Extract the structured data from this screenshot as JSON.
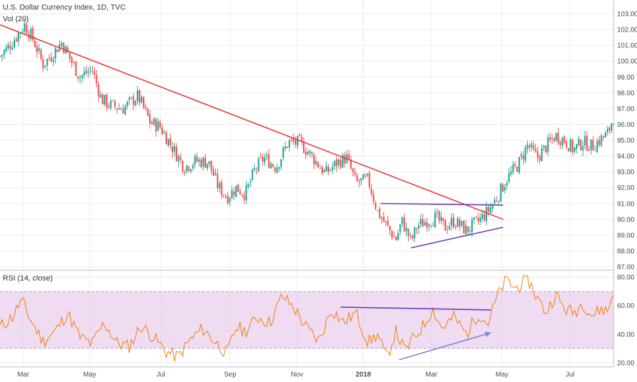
{
  "header": {
    "title": "U.S. Dollar Currency Index, 1D, TVC",
    "volume_label": "Vol (20)",
    "rsi_label": "RSI (14, close)"
  },
  "colors": {
    "up_candle": "#26a69a",
    "down_candle": "#ef5350",
    "trendline": "#e53935",
    "triangle_lines": "#673ab7",
    "rsi_line": "#f57c00",
    "rsi_band": "#e1bee7",
    "rsi_arrow": "#7986cb",
    "grid": "#ececec"
  },
  "chart_data": [
    {
      "type": "candlestick",
      "title": "U.S. Dollar Currency Index, 1D, TVC",
      "x_ticks": [
        "Mar",
        "May",
        "Jul",
        "Sep",
        "Nov",
        "2018",
        "Mar",
        "May",
        "Jul"
      ],
      "y_ticks": [
        "103.00",
        "102.00",
        "101.00",
        "100.00",
        "99.00",
        "98.00",
        "97.00",
        "96.00",
        "95.00",
        "94.00",
        "93.00",
        "92.00",
        "91.00",
        "90.00",
        "89.00",
        "88.00",
        "87.00"
      ],
      "ylim": [
        87,
        103
      ],
      "close_path": [
        [
          0,
          100.3
        ],
        [
          0.02,
          101.2
        ],
        [
          0.04,
          102.3
        ],
        [
          0.055,
          101.3
        ],
        [
          0.07,
          99.8
        ],
        [
          0.085,
          100.4
        ],
        [
          0.1,
          101.2
        ],
        [
          0.115,
          100.1
        ],
        [
          0.13,
          99.0
        ],
        [
          0.15,
          99.5
        ],
        [
          0.165,
          97.6
        ],
        [
          0.18,
          97.2
        ],
        [
          0.2,
          97.0
        ],
        [
          0.225,
          97.8
        ],
        [
          0.245,
          96.1
        ],
        [
          0.26,
          95.9
        ],
        [
          0.28,
          94.6
        ],
        [
          0.3,
          93.3
        ],
        [
          0.32,
          93.7
        ],
        [
          0.34,
          93.6
        ],
        [
          0.355,
          92.1
        ],
        [
          0.37,
          91.4
        ],
        [
          0.385,
          92.0
        ],
        [
          0.4,
          91.6
        ],
        [
          0.415,
          93.1
        ],
        [
          0.43,
          93.9
        ],
        [
          0.45,
          93.3
        ],
        [
          0.47,
          94.9
        ],
        [
          0.49,
          94.8
        ],
        [
          0.51,
          93.9
        ],
        [
          0.53,
          92.9
        ],
        [
          0.55,
          93.6
        ],
        [
          0.565,
          93.9
        ],
        [
          0.58,
          92.3
        ],
        [
          0.6,
          92.5
        ],
        [
          0.615,
          90.5
        ],
        [
          0.63,
          89.6
        ],
        [
          0.645,
          88.7
        ],
        [
          0.655,
          89.9
        ],
        [
          0.67,
          88.6
        ],
        [
          0.68,
          89.6
        ],
        [
          0.695,
          89.9
        ],
        [
          0.71,
          90.1
        ],
        [
          0.725,
          89.5
        ],
        [
          0.74,
          89.9
        ],
        [
          0.76,
          89.3
        ],
        [
          0.78,
          89.9
        ],
        [
          0.795,
          90.5
        ],
        [
          0.81,
          91.4
        ],
        [
          0.825,
          92.5
        ],
        [
          0.845,
          93.5
        ],
        [
          0.86,
          94.7
        ],
        [
          0.875,
          93.9
        ],
        [
          0.89,
          94.6
        ],
        [
          0.905,
          95.3
        ],
        [
          0.92,
          95.0
        ],
        [
          0.935,
          94.4
        ],
        [
          0.95,
          94.9
        ],
        [
          0.965,
          94.6
        ],
        [
          0.98,
          95.1
        ],
        [
          0.99,
          95.4
        ],
        [
          1.0,
          96.5
        ]
      ],
      "trendline": [
        [
          0.0,
          102.3
        ],
        [
          0.82,
          90.0
        ]
      ],
      "triangle_upper": [
        [
          0.62,
          91.0
        ],
        [
          0.82,
          90.9
        ]
      ],
      "triangle_lower": [
        [
          0.67,
          88.2
        ],
        [
          0.82,
          89.5
        ]
      ]
    },
    {
      "type": "line",
      "title": "RSI (14, close)",
      "y_ticks": [
        "80.00",
        "60.00",
        "40.00",
        "20.00"
      ],
      "ylim": [
        17,
        83
      ],
      "band": [
        30,
        70
      ],
      "rsi_path": [
        [
          0,
          45
        ],
        [
          0.02,
          52
        ],
        [
          0.035,
          64
        ],
        [
          0.05,
          50
        ],
        [
          0.07,
          35
        ],
        [
          0.09,
          42
        ],
        [
          0.11,
          55
        ],
        [
          0.13,
          38
        ],
        [
          0.15,
          33
        ],
        [
          0.17,
          48
        ],
        [
          0.19,
          34
        ],
        [
          0.21,
          31
        ],
        [
          0.23,
          46
        ],
        [
          0.25,
          38
        ],
        [
          0.27,
          28
        ],
        [
          0.29,
          24
        ],
        [
          0.31,
          36
        ],
        [
          0.33,
          44
        ],
        [
          0.35,
          35
        ],
        [
          0.37,
          26
        ],
        [
          0.385,
          45
        ],
        [
          0.4,
          42
        ],
        [
          0.42,
          52
        ],
        [
          0.44,
          48
        ],
        [
          0.46,
          67
        ],
        [
          0.48,
          58
        ],
        [
          0.5,
          44
        ],
        [
          0.52,
          35
        ],
        [
          0.54,
          58
        ],
        [
          0.56,
          48
        ],
        [
          0.58,
          55
        ],
        [
          0.6,
          34
        ],
        [
          0.615,
          40
        ],
        [
          0.63,
          23
        ],
        [
          0.645,
          42
        ],
        [
          0.66,
          28
        ],
        [
          0.675,
          38
        ],
        [
          0.69,
          46
        ],
        [
          0.705,
          58
        ],
        [
          0.72,
          44
        ],
        [
          0.74,
          52
        ],
        [
          0.76,
          40
        ],
        [
          0.78,
          55
        ],
        [
          0.795,
          47
        ],
        [
          0.81,
          66
        ],
        [
          0.825,
          78
        ],
        [
          0.84,
          72
        ],
        [
          0.86,
          79
        ],
        [
          0.875,
          66
        ],
        [
          0.89,
          55
        ],
        [
          0.905,
          68
        ],
        [
          0.92,
          58
        ],
        [
          0.935,
          55
        ],
        [
          0.95,
          62
        ],
        [
          0.965,
          53
        ],
        [
          0.98,
          58
        ],
        [
          0.99,
          56
        ],
        [
          1.0,
          70
        ]
      ],
      "divergence_line": [
        [
          0.555,
          59
        ],
        [
          0.8,
          57
        ]
      ],
      "arrow": [
        [
          0.65,
          22
        ],
        [
          0.8,
          41
        ]
      ]
    }
  ]
}
